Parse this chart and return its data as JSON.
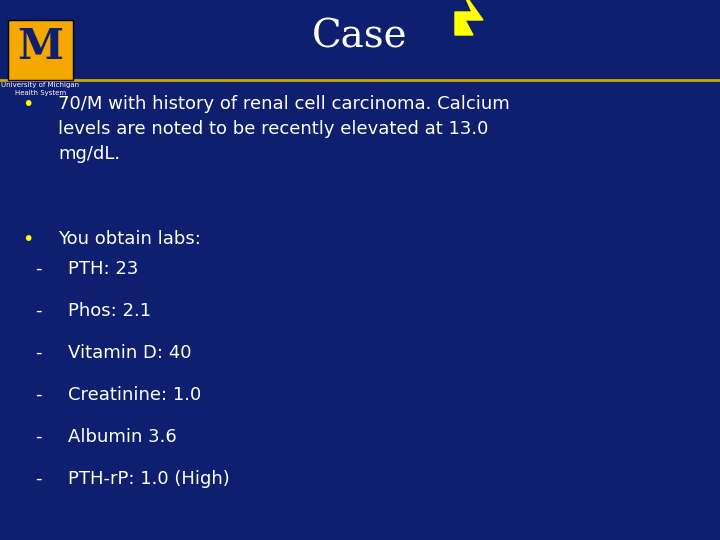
{
  "bg_color": "#0d1f6e",
  "title": "Case",
  "title_color": "#ffffff",
  "title_fontsize": 28,
  "separator_color": "#c8a800",
  "bullet_color": "#ffff00",
  "text_color": "#ffffff",
  "bullet1_text": "70/M with history of renal cell carcinoma. Calcium\nlevels are noted to be recently elevated at 13.0\nmg/dL.",
  "bullet2_text": "You obtain labs:",
  "sub_items": [
    "PTH: 23",
    "Phos: 2.1",
    "Vitamin D: 40",
    "Creatinine: 1.0",
    "Albumin 3.6",
    "PTH-rP: 1.0 (High)"
  ],
  "logo_m_color": "#f5a800",
  "logo_text": "University of Michigan\nHealth System",
  "font_size_body": 13
}
